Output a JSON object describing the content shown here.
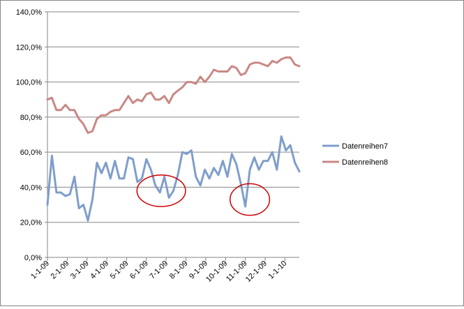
{
  "chart_data": {
    "type": "line",
    "ylim": [
      0,
      140
    ],
    "yticks": [
      0,
      20,
      40,
      60,
      80,
      100,
      120,
      140
    ],
    "ytick_labels": [
      "0,0%",
      "20,0%",
      "40,0%",
      "60,0%",
      "80,0%",
      "100,0%",
      "120,0%",
      "140,0%"
    ],
    "x_count": 57,
    "x_tick_labels": [
      "1-1-09",
      "2-1-09",
      "3-1-09",
      "4-1-09",
      "5-1-09",
      "6-1-09",
      "7-1-09",
      "8-1-09",
      "9-1-09",
      "10-1-09",
      "11-1-09",
      "12-1-09",
      "1-1-10"
    ],
    "x_tick_positions": [
      0,
      4.4,
      8.8,
      13.2,
      17.6,
      22,
      26.4,
      30.8,
      35.2,
      39.6,
      44,
      48.4,
      52.8
    ],
    "grid": "horizontal",
    "legend_position": "right",
    "series": [
      {
        "name": "Datenreihen7",
        "color": "#7F9ECB",
        "values": [
          30,
          58,
          37,
          37,
          35,
          36,
          46,
          28,
          30,
          21,
          33,
          54,
          48,
          54,
          45,
          55,
          45,
          45,
          57,
          56,
          43,
          45,
          56,
          50,
          41,
          37,
          46,
          34,
          38,
          47,
          60,
          59,
          61,
          46,
          41,
          50,
          45,
          51,
          47,
          55,
          46,
          59,
          53,
          42,
          29,
          50,
          57,
          50,
          55,
          55,
          60,
          50,
          69,
          61,
          64,
          54,
          49
        ]
      },
      {
        "name": "Datenreihen8",
        "color": "#C98885",
        "values": [
          90,
          91,
          84,
          84,
          87,
          84,
          84,
          79,
          76,
          71,
          72,
          79,
          81,
          81,
          83,
          84,
          84,
          88,
          92,
          88,
          90,
          89,
          93,
          94,
          90,
          90,
          92,
          88,
          93,
          95,
          97,
          100,
          100,
          99,
          103,
          100,
          103,
          107,
          106,
          106,
          106,
          109,
          108,
          104,
          105,
          110,
          111,
          111,
          110,
          109,
          112,
          111,
          113,
          114,
          114,
          110,
          109
        ]
      }
    ],
    "annotations": [
      {
        "type": "ellipse",
        "color": "#CC0000",
        "x_center": 25.3,
        "y_center": 38,
        "x_radius": 5.4,
        "y_radius": 9
      },
      {
        "type": "ellipse",
        "color": "#CC0000",
        "x_center": 45,
        "y_center": 33,
        "x_radius": 4.4,
        "y_radius": 9
      }
    ]
  }
}
